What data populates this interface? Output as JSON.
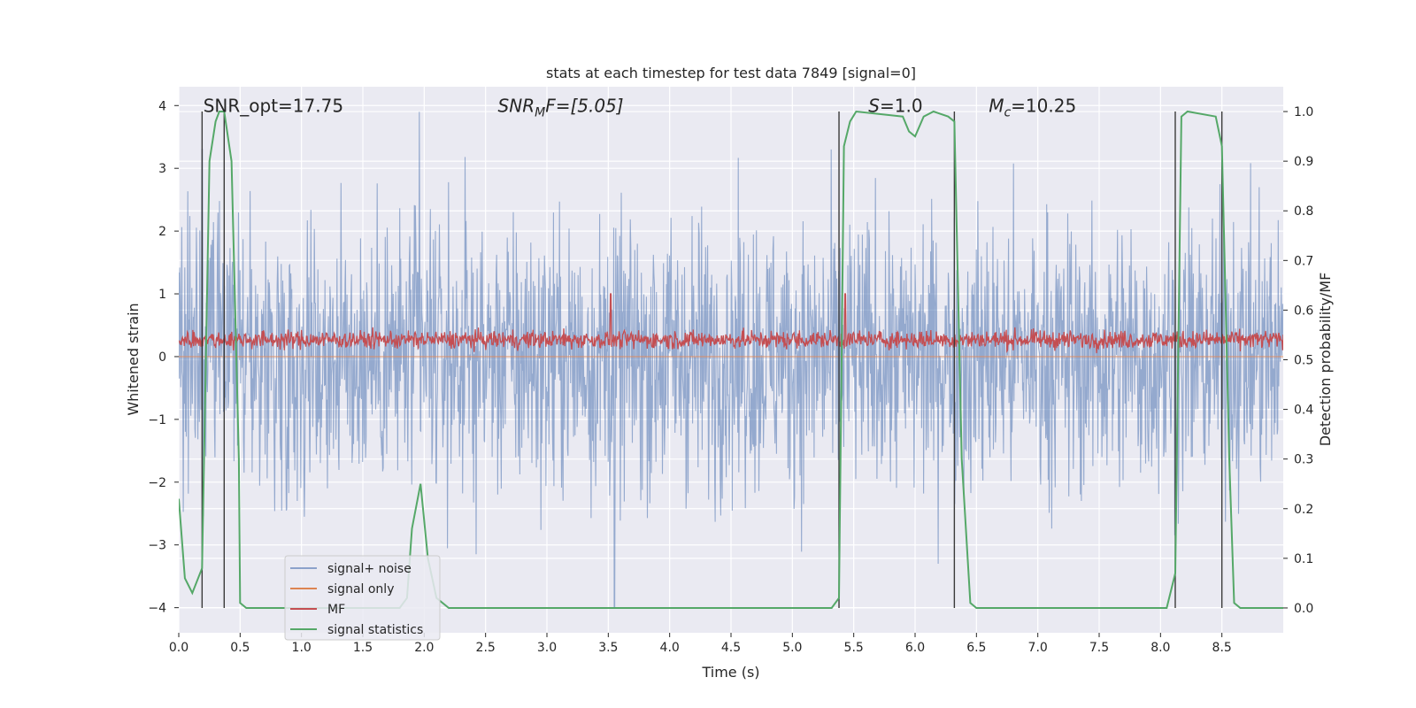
{
  "chart_data": {
    "type": "line",
    "title": "stats at each timestep for test data 7849 [signal=0]",
    "xlabel": "Time (s)",
    "ylabel_left": "Whitened strain",
    "ylabel_right": "Detection probability/MF",
    "xlim": [
      0.0,
      9.0
    ],
    "ylim_left": [
      -4.4,
      4.3
    ],
    "ylim_right": [
      -0.05,
      1.05
    ],
    "xticks": [
      "0.0",
      "0.5",
      "1.0",
      "1.5",
      "2.0",
      "2.5",
      "3.0",
      "3.5",
      "4.0",
      "4.5",
      "5.0",
      "5.5",
      "6.0",
      "6.5",
      "7.0",
      "7.5",
      "8.0",
      "8.5"
    ],
    "yticks_left": [
      "−4",
      "−3",
      "−2",
      "−1",
      "0",
      "1",
      "2",
      "3",
      "4"
    ],
    "yticks_right": [
      "0.0",
      "0.1",
      "0.2",
      "0.3",
      "0.4",
      "0.5",
      "0.6",
      "0.7",
      "0.8",
      "0.9",
      "1.0"
    ],
    "grid": true,
    "legend_placement": "lower-left",
    "annotations": [
      {
        "prefix": "SNR_opt",
        "sub": "",
        "suffix": "=17.75",
        "x": 0.2
      },
      {
        "prefix": "SNR",
        "sub": "M",
        "suffix": "F=[5.05]",
        "x": 2.6
      },
      {
        "prefix": "S",
        "sub": "",
        "suffix": "=1.0",
        "x": 5.62
      },
      {
        "prefix": "M",
        "sub": "c",
        "suffix": "=10.25",
        "x": 6.6
      }
    ],
    "vertical_markers": [
      0.19,
      0.37,
      5.38,
      6.32,
      8.12,
      8.5
    ],
    "series": [
      {
        "name": "signal+ noise",
        "color": "#4c72b0",
        "kind": "noise",
        "amplitude": 2.0,
        "spikes": [
          [
            1.96,
            3.9
          ],
          [
            3.55,
            -4.0
          ],
          [
            0.19,
            3.3
          ]
        ]
      },
      {
        "name": "signal only",
        "color": "#dd8452",
        "kind": "flat",
        "value": 0.0
      },
      {
        "name": "MF",
        "color": "#c44e52",
        "kind": "noise-band",
        "center": 0.27,
        "amplitude": 0.12,
        "spikes": [
          [
            3.52,
            1.0
          ],
          [
            5.43,
            1.0
          ]
        ]
      },
      {
        "name": "signal statistics",
        "color": "#55a868",
        "kind": "probability",
        "points": [
          [
            0.0,
            0.22
          ],
          [
            0.05,
            0.06
          ],
          [
            0.11,
            0.03
          ],
          [
            0.19,
            0.08
          ],
          [
            0.25,
            0.9
          ],
          [
            0.3,
            0.98
          ],
          [
            0.33,
            1.0
          ],
          [
            0.37,
            1.0
          ],
          [
            0.43,
            0.9
          ],
          [
            0.49,
            0.3
          ],
          [
            0.5,
            0.01
          ],
          [
            0.55,
            0.0
          ],
          [
            1.8,
            0.0
          ],
          [
            1.86,
            0.02
          ],
          [
            1.9,
            0.16
          ],
          [
            1.97,
            0.25
          ],
          [
            2.03,
            0.1
          ],
          [
            2.1,
            0.02
          ],
          [
            2.2,
            0.0
          ],
          [
            5.32,
            0.0
          ],
          [
            5.38,
            0.02
          ],
          [
            5.42,
            0.93
          ],
          [
            5.47,
            0.98
          ],
          [
            5.52,
            1.0
          ],
          [
            5.9,
            0.99
          ],
          [
            5.95,
            0.96
          ],
          [
            6.0,
            0.95
          ],
          [
            6.07,
            0.99
          ],
          [
            6.15,
            1.0
          ],
          [
            6.27,
            0.99
          ],
          [
            6.32,
            0.98
          ],
          [
            6.38,
            0.3
          ],
          [
            6.45,
            0.01
          ],
          [
            6.5,
            0.0
          ],
          [
            8.05,
            0.0
          ],
          [
            8.12,
            0.07
          ],
          [
            8.17,
            0.99
          ],
          [
            8.22,
            1.0
          ],
          [
            8.45,
            0.99
          ],
          [
            8.5,
            0.93
          ],
          [
            8.56,
            0.3
          ],
          [
            8.6,
            0.01
          ],
          [
            8.65,
            0.0
          ],
          [
            9.0,
            0.0
          ]
        ]
      }
    ]
  }
}
